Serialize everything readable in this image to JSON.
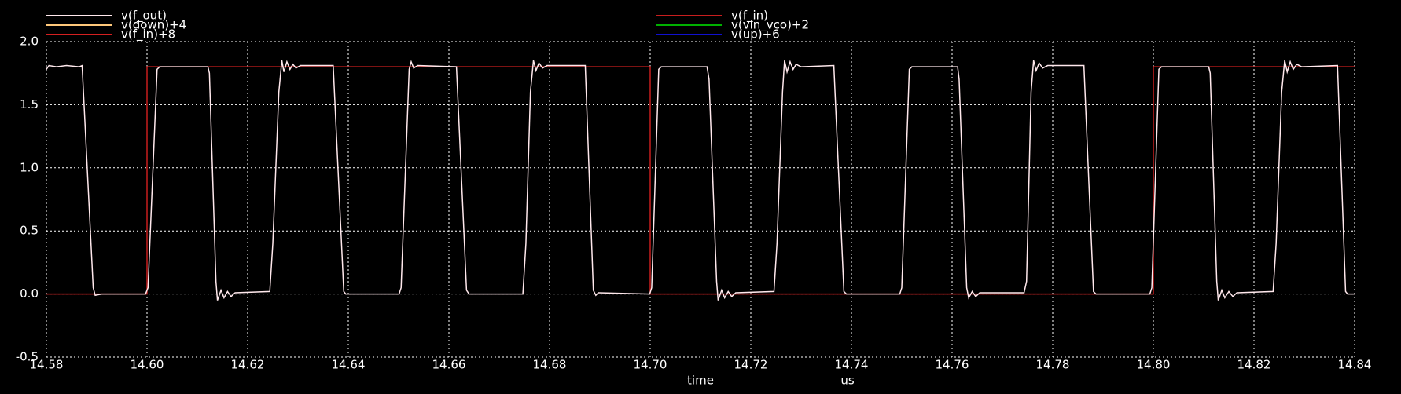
{
  "chart_data": {
    "type": "line",
    "xlabel": "time",
    "xunit": "us",
    "xlim": [
      14.58,
      14.84
    ],
    "xticks": [
      14.58,
      {
        "value": 14.6,
        "label": "14.60"
      },
      14.62,
      14.64,
      14.66,
      14.68,
      {
        "value": 14.7,
        "label": "14.70"
      },
      14.72,
      14.74,
      14.76,
      14.78,
      {
        "value": 14.8,
        "label": "14.80"
      },
      14.82,
      14.84
    ],
    "ylim": [
      -0.5,
      2.0
    ],
    "yticks": [
      -0.5,
      {
        "value": 0,
        "label": "0.0"
      },
      0.5,
      {
        "value": 1,
        "label": "1.0"
      },
      1.5,
      {
        "value": 2,
        "label": "2.0"
      }
    ],
    "grid": true,
    "series": [
      {
        "name": "v(f_out)",
        "color": "#ffe8ec",
        "x": [
          14.58,
          14.5805,
          14.582,
          14.584,
          14.5865,
          14.5871,
          14.5893,
          14.5897,
          14.591,
          14.5997,
          14.6002,
          14.602,
          14.6025,
          14.6121,
          14.6124,
          14.6137,
          14.614,
          14.6147,
          14.6153,
          14.616,
          14.6167,
          14.6175,
          14.6244,
          14.625,
          14.6262,
          14.6268,
          14.6272,
          14.6278,
          14.6284,
          14.629,
          14.6296,
          14.6305,
          14.637,
          14.6391,
          14.6395,
          14.6501,
          14.6505,
          14.6521,
          14.6525,
          14.653,
          14.6538,
          14.6615,
          14.6635,
          14.664,
          14.6747,
          14.6753,
          14.6762,
          14.6768,
          14.6773,
          14.6779,
          14.6786,
          14.6795,
          14.6871,
          14.6887,
          14.6892,
          14.6897,
          14.6999,
          14.7003,
          14.7017,
          14.7022,
          14.7113,
          14.7117,
          14.7132,
          14.7135,
          14.7142,
          14.7148,
          14.7155,
          14.7162,
          14.717,
          14.7246,
          14.7252,
          14.7263,
          14.7267,
          14.7272,
          14.7278,
          14.7284,
          14.729,
          14.73,
          14.7365,
          14.7385,
          14.739,
          14.7496,
          14.75,
          14.7515,
          14.752,
          14.7611,
          14.7614,
          14.7629,
          14.7633,
          14.764,
          14.7647,
          14.7655,
          14.7743,
          14.7748,
          14.7757,
          14.7762,
          14.7767,
          14.7773,
          14.778,
          14.779,
          14.7862,
          14.7881,
          14.7886,
          14.7993,
          14.7997,
          14.8011,
          14.8016,
          14.811,
          14.8113,
          14.8126,
          14.8129,
          14.8136,
          14.8142,
          14.815,
          14.8158,
          14.8166,
          14.8238,
          14.8244,
          14.8255,
          14.8261,
          14.8266,
          14.8272,
          14.8278,
          14.8285,
          14.8295,
          14.8366,
          14.8382,
          14.8386,
          14.84
        ],
        "values": [
          1.78,
          1.81,
          1.8,
          1.81,
          1.8,
          1.81,
          0.05,
          -0.01,
          0,
          0,
          0.05,
          1.78,
          1.8,
          1.8,
          1.75,
          0.1,
          -0.05,
          0.03,
          -0.03,
          0.02,
          -0.02,
          0.01,
          0.02,
          0.4,
          1.6,
          1.85,
          1.76,
          1.84,
          1.78,
          1.82,
          1.79,
          1.81,
          1.81,
          0.02,
          0,
          0,
          0.05,
          1.78,
          1.84,
          1.79,
          1.81,
          1.8,
          0.03,
          0,
          0,
          0.4,
          1.6,
          1.85,
          1.77,
          1.83,
          1.79,
          1.81,
          1.81,
          0.03,
          -0.01,
          0.01,
          0,
          0.05,
          1.78,
          1.8,
          1.8,
          1.7,
          0.1,
          -0.05,
          0.03,
          -0.03,
          0.02,
          -0.02,
          0.01,
          0.02,
          0.4,
          1.6,
          1.85,
          1.76,
          1.84,
          1.78,
          1.82,
          1.8,
          1.81,
          0.02,
          0,
          0,
          0.05,
          1.78,
          1.8,
          1.8,
          1.7,
          0.05,
          -0.03,
          0.02,
          -0.02,
          0.01,
          0.01,
          0.1,
          1.6,
          1.85,
          1.77,
          1.83,
          1.79,
          1.81,
          1.81,
          0.02,
          0,
          0,
          0.05,
          1.78,
          1.8,
          1.8,
          1.75,
          0.1,
          -0.05,
          0.03,
          -0.03,
          0.02,
          -0.02,
          0.01,
          0.02,
          0.4,
          1.6,
          1.85,
          1.76,
          1.84,
          1.78,
          1.82,
          1.8,
          1.81,
          0.02,
          0,
          0
        ]
      },
      {
        "name": "v(down)+4",
        "color": "#ffc87a"
      },
      {
        "name": "v(f_in)+8",
        "color": "#d42020"
      },
      {
        "name": "v(f_in)",
        "color": "#c81e1e",
        "x": [
          14.58,
          14.6,
          14.6,
          14.7,
          14.7,
          14.8,
          14.8,
          14.84
        ],
        "values": [
          0,
          0,
          1.8,
          1.8,
          0,
          0,
          1.8,
          1.8
        ]
      },
      {
        "name": "v(vin_vco)+2",
        "color": "#00b000"
      },
      {
        "name": "v(up)+6",
        "color": "#1010d0"
      }
    ]
  }
}
